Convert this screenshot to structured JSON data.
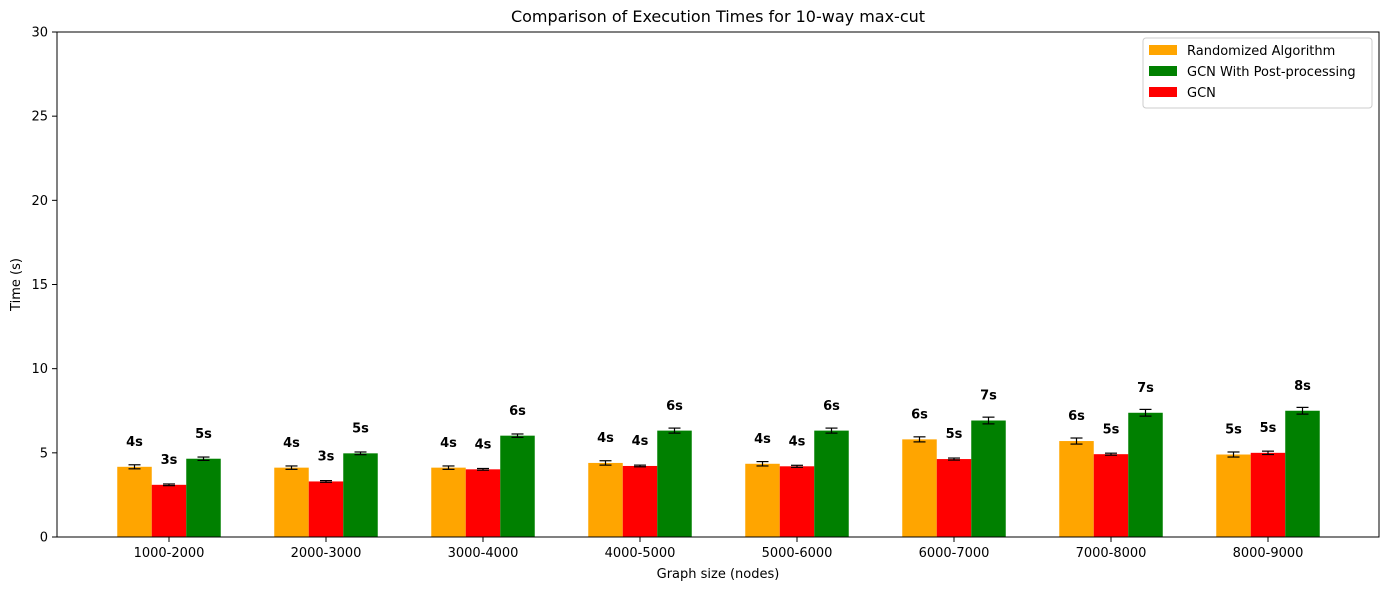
{
  "chart_data": {
    "type": "bar",
    "title": "Comparison of Execution Times for 10-way max-cut",
    "xlabel": "Graph size (nodes)",
    "ylabel": "Time (s)",
    "ylim": [
      0,
      30
    ],
    "yticks": [
      0,
      5,
      10,
      15,
      20,
      25,
      30
    ],
    "categories": [
      "1000-2000",
      "2000-3000",
      "3000-4000",
      "4000-5000",
      "5000-6000",
      "6000-7000",
      "7000-8000",
      "8000-9000"
    ],
    "grid": false,
    "legend_position": "top-right",
    "series": [
      {
        "name": "Randomized Algorithm",
        "color": "#ffa500",
        "values": [
          4.17,
          4.12,
          4.12,
          4.4,
          4.35,
          5.8,
          5.7,
          4.9
        ],
        "errors": [
          0.12,
          0.1,
          0.1,
          0.13,
          0.13,
          0.15,
          0.18,
          0.15
        ],
        "labels": [
          "4s",
          "4s",
          "4s",
          "4s",
          "4s",
          "6s",
          "6s",
          "5s"
        ]
      },
      {
        "name": "GCN",
        "color": "#ff0000",
        "values": [
          3.1,
          3.3,
          4.02,
          4.22,
          4.2,
          4.63,
          4.92,
          5.0
        ],
        "errors": [
          0.05,
          0.05,
          0.05,
          0.05,
          0.06,
          0.06,
          0.06,
          0.1
        ],
        "labels": [
          "3s",
          "3s",
          "4s",
          "4s",
          "4s",
          "5s",
          "5s",
          "5s"
        ]
      },
      {
        "name": "GCN With Post-processing",
        "color": "#008000",
        "values": [
          4.65,
          4.97,
          6.02,
          6.32,
          6.32,
          6.92,
          7.38,
          7.5
        ],
        "errors": [
          0.1,
          0.08,
          0.1,
          0.15,
          0.15,
          0.2,
          0.2,
          0.2
        ],
        "labels": [
          "5s",
          "5s",
          "6s",
          "6s",
          "6s",
          "7s",
          "7s",
          "8s"
        ]
      }
    ],
    "legend_order": [
      "Randomized Algorithm",
      "GCN With Post-processing",
      "GCN"
    ]
  }
}
